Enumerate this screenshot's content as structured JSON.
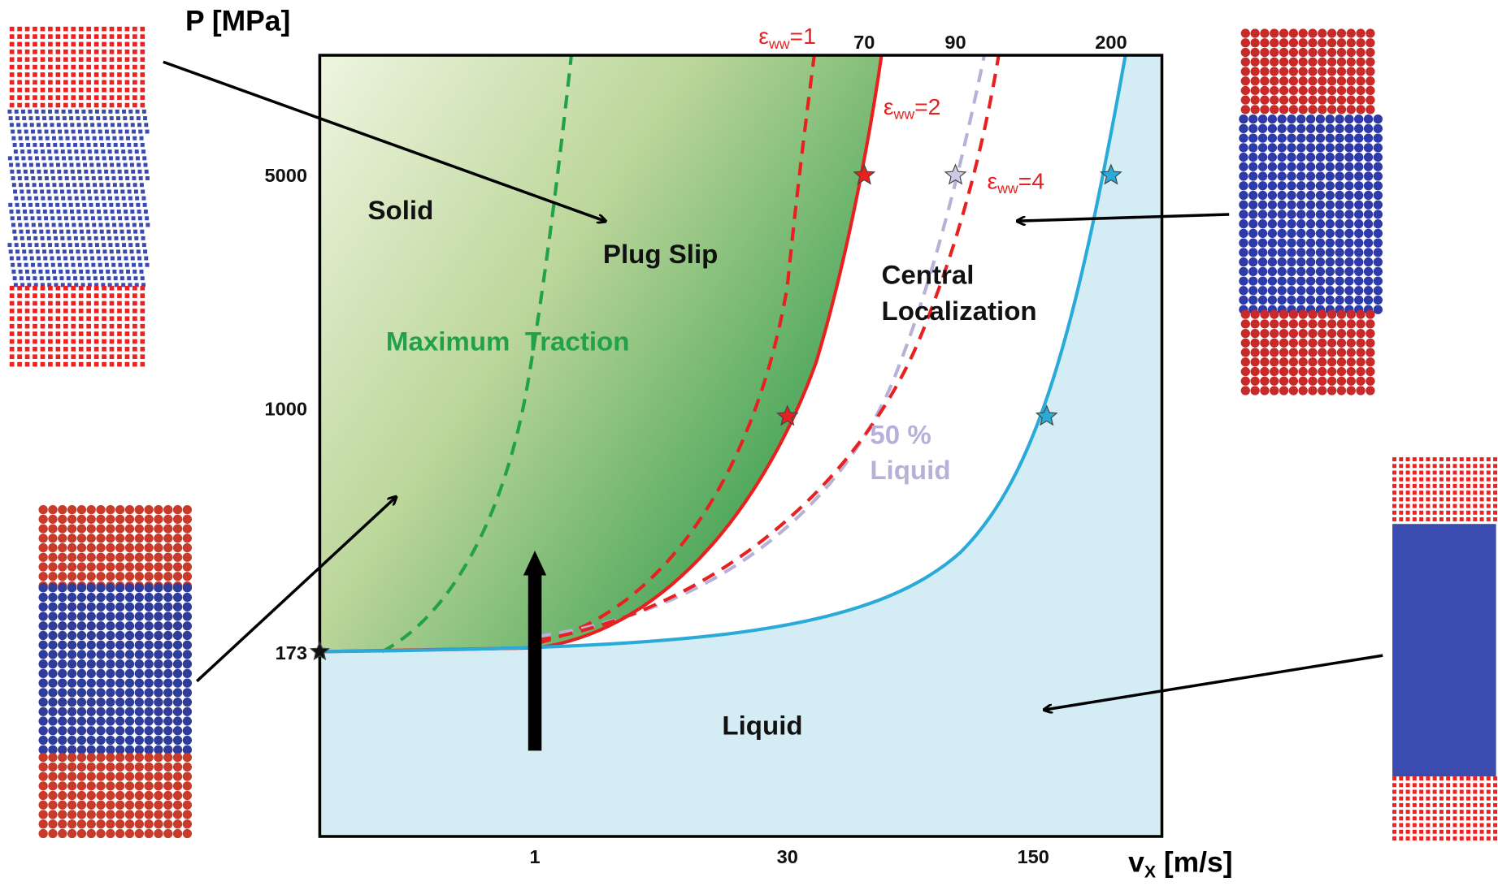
{
  "axes": {
    "y_title": "P [MPa]",
    "x_title": {
      "symbol": "v",
      "subscript": "X",
      "unit": " [m/s]"
    },
    "x_ticks": [
      "1",
      "30",
      "150"
    ],
    "y_ticks": [
      "173",
      "1000",
      "5000"
    ],
    "top_ticks": [
      "70",
      "90",
      "200"
    ]
  },
  "curve_labels": [
    {
      "symbol": "ε",
      "subscript": "ww",
      "value": "=1"
    },
    {
      "symbol": "ε",
      "subscript": "ww",
      "value": "=2"
    },
    {
      "symbol": "ε",
      "subscript": "ww",
      "value": "=4"
    }
  ],
  "regions": {
    "solid": "Solid",
    "plug_slip": "Plug Slip",
    "maximum_traction": "Maximum  Traction",
    "central_localization": [
      "Central",
      "Localization"
    ],
    "liquid_fraction": [
      "50 %",
      "Liquid"
    ],
    "liquid": "Liquid"
  }
}
